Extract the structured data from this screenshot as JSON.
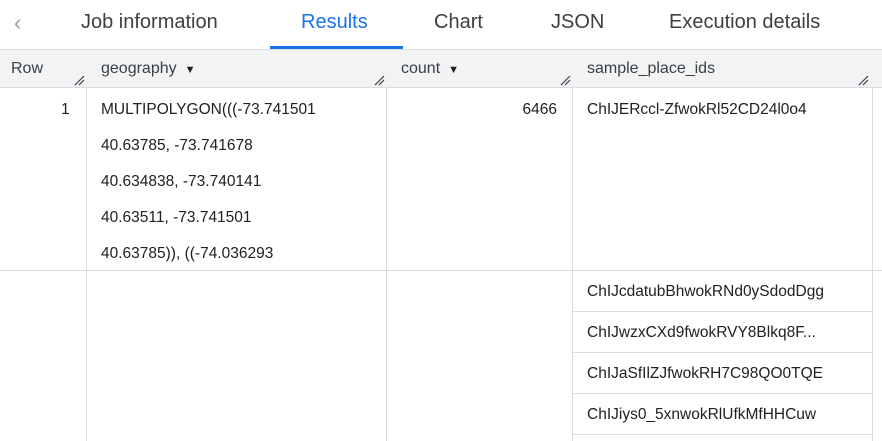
{
  "tabs": [
    {
      "label": "Job information"
    },
    {
      "label": "Results",
      "active": true
    },
    {
      "label": "Chart"
    },
    {
      "label": "JSON"
    },
    {
      "label": "Execution details"
    }
  ],
  "columns": [
    {
      "label": "Row"
    },
    {
      "label": "geography"
    },
    {
      "label": "count"
    },
    {
      "label": "sample_place_ids"
    }
  ],
  "rows": [
    {
      "row": "1",
      "geography_lines": [
        "MULTIPOLYGON(((-73.741501",
        "40.63785, -73.741678",
        "40.634838, -73.740141",
        "40.63511, -73.741501",
        "40.63785)), ((-74.036293"
      ],
      "count": "6466",
      "sample_place_ids": [
        "ChIJERccl-ZfwokRl52CD24l0o4",
        "ChIJcdatubBhwokRNd0ySdodDgg",
        "ChIJwzxCXd9fwokRVY8Blkq8F...",
        "ChIJaSfIlZJfwokRH7C98QO0TQE",
        "ChIJiys0_5xnwokRlUfkMfHHCuw"
      ]
    }
  ],
  "colors": {
    "accent": "#1a73e8",
    "header_bg": "#f1f3f4"
  }
}
